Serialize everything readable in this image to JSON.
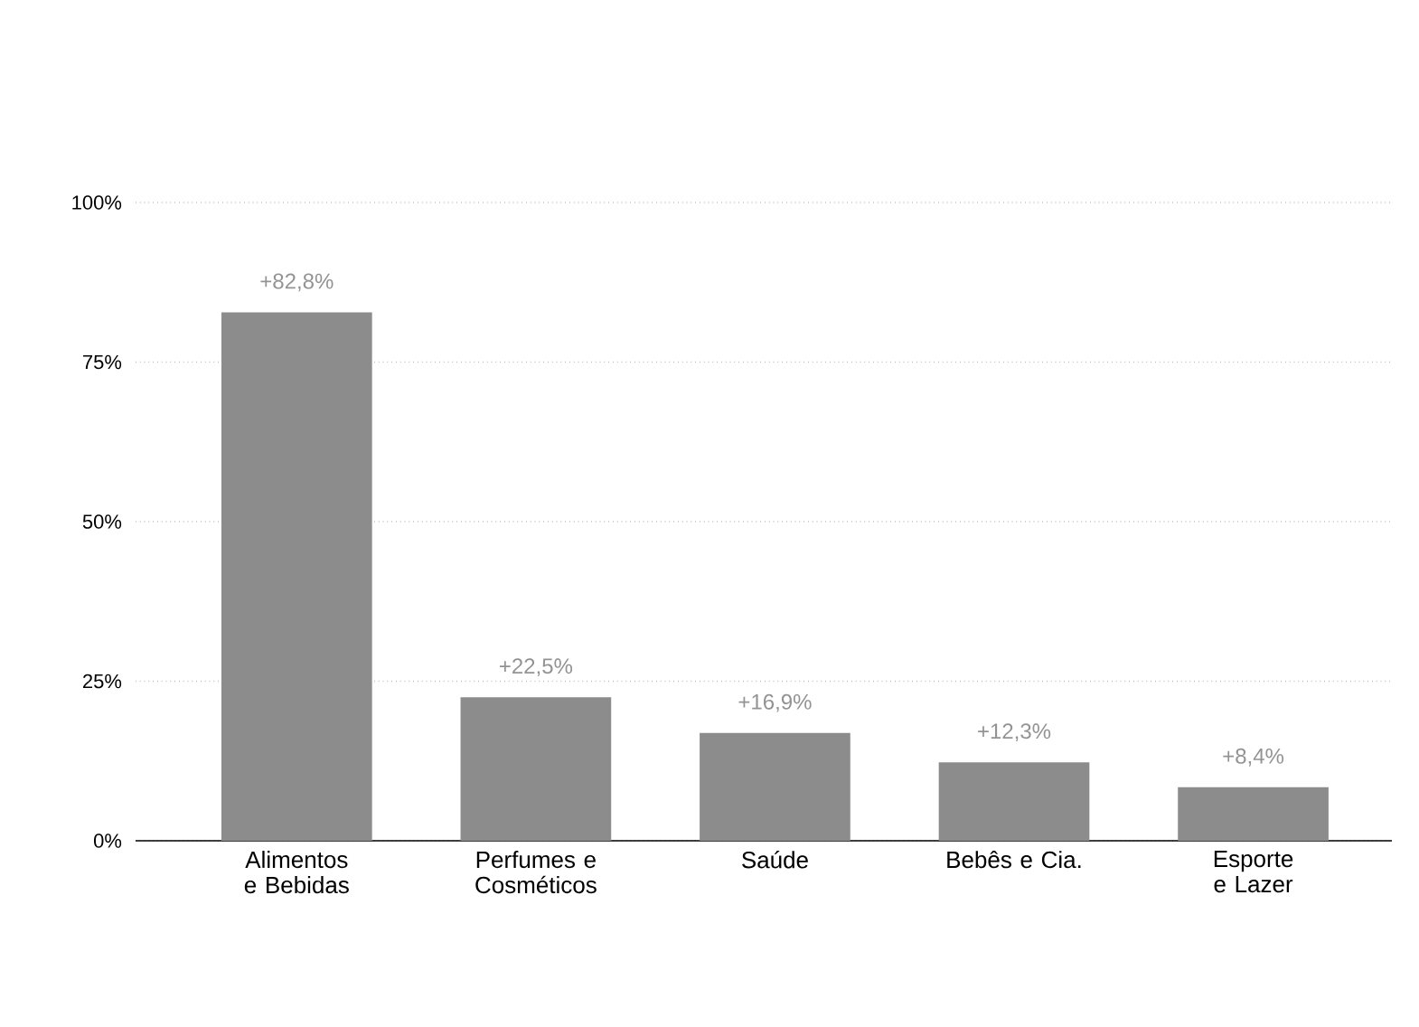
{
  "chart_data": {
    "type": "bar",
    "categories": [
      "Alimentos e Bebidas",
      "Perfumes e Cosméticos",
      "Saúde",
      "Bebês e Cia.",
      "Esporte e Lazer"
    ],
    "values": [
      82.8,
      22.5,
      16.9,
      12.3,
      8.4
    ],
    "value_labels": [
      "+82,8%",
      "+22,5%",
      "+16,9%",
      "+12,3%",
      "+8,4%"
    ],
    "color": "#8c8c8c",
    "ylim": [
      0,
      100
    ],
    "yticks": [
      {
        "value": 0,
        "label": "0%"
      },
      {
        "value": 25,
        "label": "25%"
      },
      {
        "value": 50,
        "label": "50%"
      },
      {
        "value": 75,
        "label": "75%"
      },
      {
        "value": 100,
        "label": "100%"
      }
    ],
    "grid": "y",
    "line_style": "dotted"
  }
}
